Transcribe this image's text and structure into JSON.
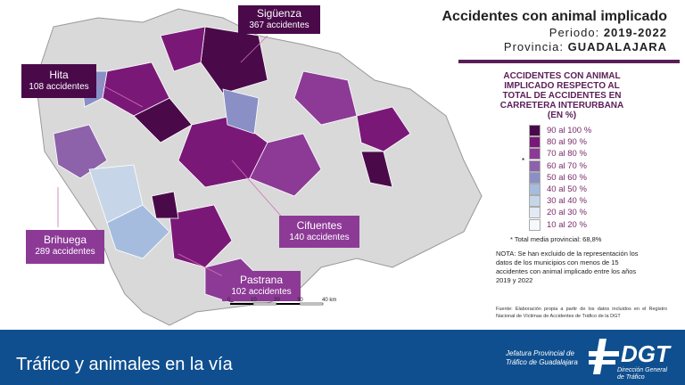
{
  "header": {
    "title": "Accidentes con animal implicado",
    "period_label": "Periodo:",
    "period": "2019-2022",
    "province_label": "Provincia:",
    "province": "GUADALAJARA"
  },
  "legend": {
    "title": "ACCIDENTES CON ANIMAL IMPLICADO RESPECTO AL TOTAL DE ACCIDENTES EN CARRETERA INTERURBANA (EN %)",
    "marker": "*",
    "items": [
      {
        "label": "90 al 100 %",
        "color": "#4a0a4a"
      },
      {
        "label": "80 al 90 %",
        "color": "#7a1878"
      },
      {
        "label": "70 al 80 %",
        "color": "#8c3a96"
      },
      {
        "label": "60 al 70 %",
        "color": "#8d62aa"
      },
      {
        "label": "50 al 60 %",
        "color": "#8a90c6"
      },
      {
        "label": "40 al 50 %",
        "color": "#a6bcdf"
      },
      {
        "label": "30 al 40 %",
        "color": "#c6d6e8"
      },
      {
        "label": "20 al 30 %",
        "color": "#e2eaf3"
      },
      {
        "label": "10 al 20 %",
        "color": "#f5f9fb"
      }
    ]
  },
  "average": "* Total media provincial: 68,8%",
  "note": "NOTA: Se han excluido de la representación los datos de los municipios con menos de 15 accidentes con animal implicado entre los años 2019 y 2022",
  "source": "Fuente: Elaboración propia a partir de los datos incluidos en el Registro Nacional de Víctimas de Accidentes de Tráfico de la DGT",
  "scale": {
    "ticks": [
      "0",
      "10",
      "20",
      "30",
      "40 km"
    ]
  },
  "callouts": [
    {
      "name": "Sigüenza",
      "count": "367 accidentes",
      "color": "#4a0a4a"
    },
    {
      "name": "Hita",
      "count": "108 accidentes",
      "color": "#4a0a4a"
    },
    {
      "name": "Brihuega",
      "count": "289 accidentes",
      "color": "#8c3a96"
    },
    {
      "name": "Cifuentes",
      "count": "140 accidentes",
      "color": "#8c3a96"
    },
    {
      "name": "Pastrana",
      "count": "102 accidentes",
      "color": "#8c3a96"
    }
  ],
  "footer": {
    "title": "Tráfico y animales en la vía",
    "jefatura": "Jefatura Provincial de Tráfico de Guadalajara",
    "logo_text": "DGT",
    "logo_sub": "Dirección General de Tráfico",
    "bg": "#0f4f8f"
  }
}
